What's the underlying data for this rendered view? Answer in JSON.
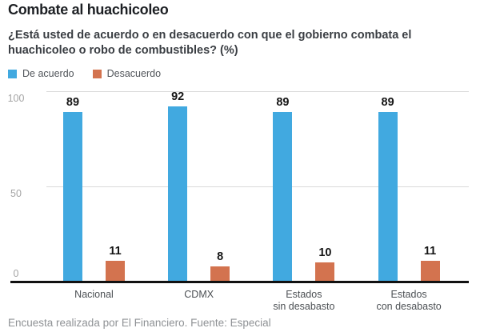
{
  "header": {
    "title": "Combate al huachicoleo",
    "subtitle": "¿Está usted de acuerdo o en desacuerdo con que el gobierno combata el huachicoleo o robo de combustibles? (%)"
  },
  "legend": {
    "items": [
      {
        "label": "De acuerdo",
        "color": "#41A9E0"
      },
      {
        "label": "Desacuerdo",
        "color": "#D3734F"
      }
    ]
  },
  "chart_data": {
    "type": "bar",
    "title": "Combate al huachicoleo",
    "subtitle": "¿Está usted de acuerdo o en desacuerdo con que el gobierno combata el huachicoleo o robo de combustibles? (%)",
    "categories": [
      "Nacional",
      "CDMX",
      "Estados\nsin desabasto",
      "Estados\ncon desabasto"
    ],
    "series": [
      {
        "name": "De acuerdo",
        "color": "#41A9E0",
        "values": [
          89,
          92,
          89,
          89
        ]
      },
      {
        "name": "Desacuerdo",
        "color": "#D3734F",
        "values": [
          11,
          8,
          10,
          11
        ]
      }
    ],
    "ylim": [
      0,
      100
    ],
    "yticks": [
      0,
      50,
      100
    ],
    "grid": true,
    "value_labels": true,
    "legend_position": "top",
    "axis_colors": {
      "gridline": "#dadada",
      "baseline": "#111111",
      "tick_label": "#a4a4a4",
      "category_label": "#4c5054",
      "value_label": "#151515"
    }
  },
  "footer": {
    "text": "Encuesta realizada por El Financiero. Fuente: Especial"
  }
}
